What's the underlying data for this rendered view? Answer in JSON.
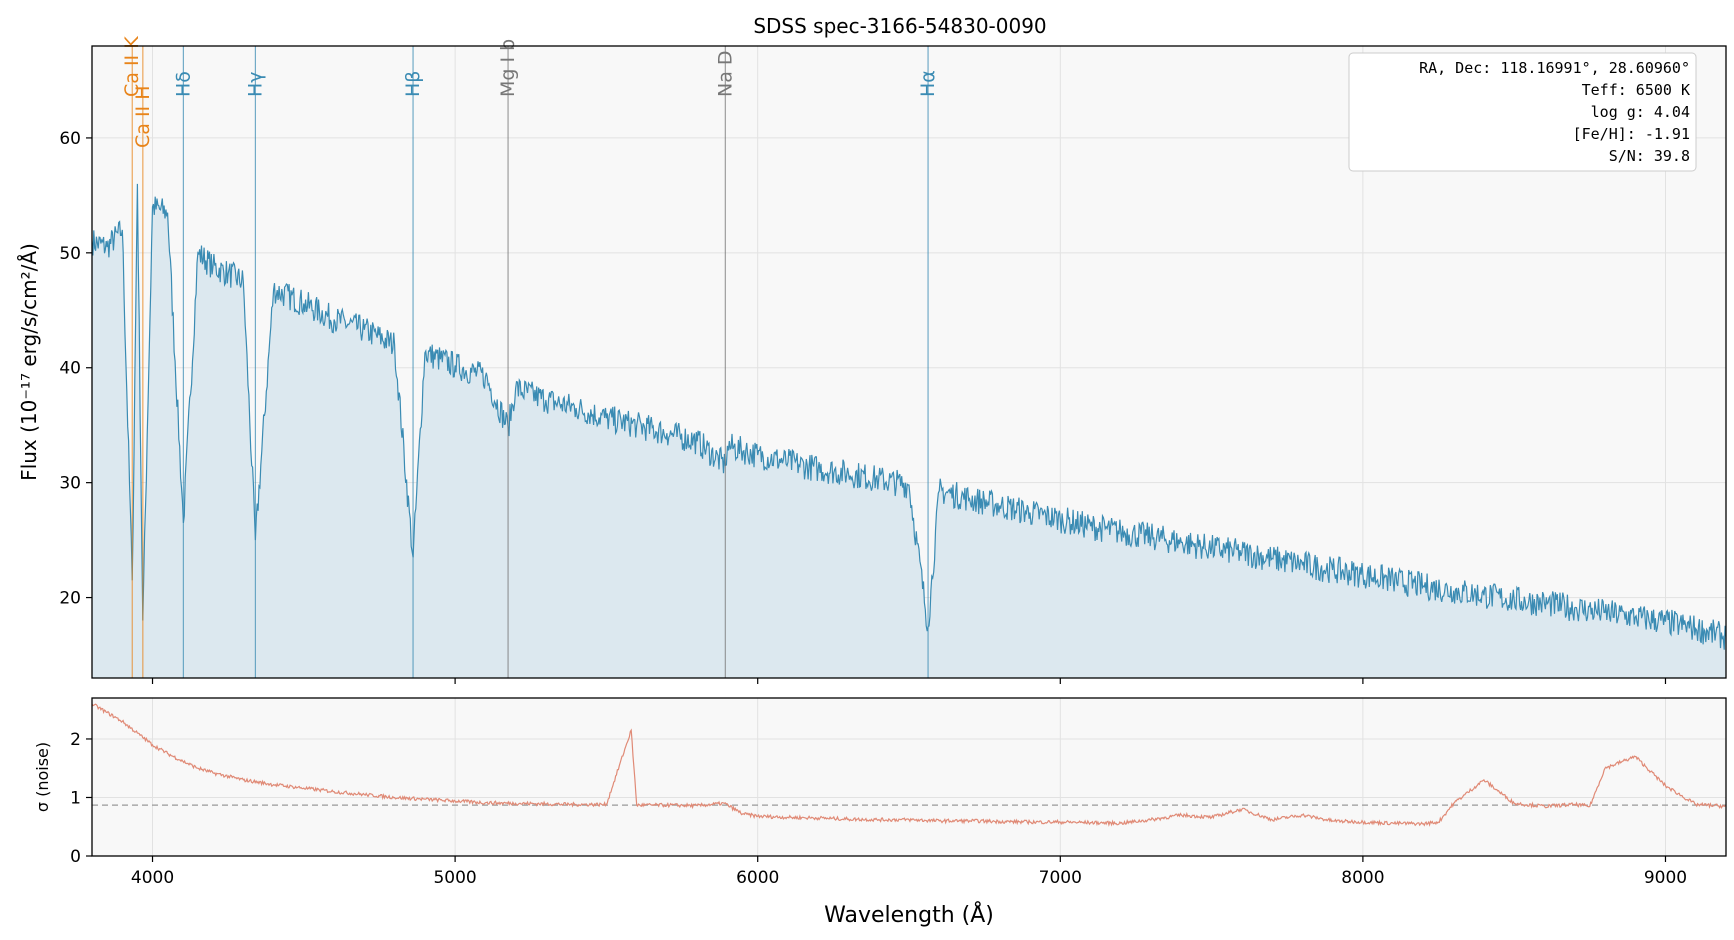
{
  "chart_data": [
    {
      "type": "line",
      "panel": "flux",
      "title": "SDSS spec-3166-54830-0090",
      "ylabel": "Flux (10⁻¹⁷ erg/s/cm²/Å)",
      "xlim": [
        3800,
        9200
      ],
      "ylim": [
        13,
        68
      ],
      "xticks": [
        4000,
        5000,
        6000,
        7000,
        8000,
        9000
      ],
      "yticks": [
        20,
        30,
        40,
        50,
        60
      ],
      "grid": true,
      "series": [
        {
          "color": "#3a8bb3",
          "fill": "#dce8ef",
          "x": [
            3800,
            3850,
            3900,
            3933,
            3950,
            3968,
            4000,
            4050,
            4102,
            4150,
            4200,
            4250,
            4300,
            4340,
            4400,
            4500,
            4600,
            4700,
            4800,
            4861,
            4900,
            5000,
            5100,
            5175,
            5200,
            5300,
            5400,
            5500,
            5600,
            5700,
            5800,
            5893,
            5900,
            6000,
            6100,
            6200,
            6300,
            6400,
            6500,
            6563,
            6600,
            6700,
            6800,
            6900,
            7000,
            7100,
            7200,
            7300,
            7400,
            7500,
            7600,
            7700,
            7800,
            7900,
            8000,
            8100,
            8200,
            8300,
            8400,
            8500,
            8600,
            8700,
            8800,
            8900,
            9000,
            9100,
            9200
          ],
          "y": [
            51,
            50.5,
            52,
            21.5,
            56,
            18,
            54,
            53.5,
            26.5,
            50,
            48.8,
            48.2,
            47.5,
            25,
            46.8,
            45.6,
            44.2,
            43.3,
            42,
            23.5,
            41.3,
            40.2,
            39.2,
            34.8,
            38.2,
            37.2,
            36.5,
            35.6,
            35,
            34.3,
            33.6,
            31.5,
            33.2,
            32.4,
            31.8,
            31.2,
            30.8,
            30.3,
            29.8,
            17.5,
            29.3,
            28.6,
            28,
            27.4,
            26.8,
            26.2,
            25.7,
            25.3,
            24.8,
            24.3,
            23.9,
            23.4,
            22.9,
            22.4,
            22,
            21.5,
            21,
            20.6,
            20.2,
            19.8,
            19.5,
            19.1,
            18.7,
            18.3,
            17.9,
            17.3,
            16.6
          ]
        }
      ],
      "lines": [
        {
          "label": "Ca II K",
          "x": 3933,
          "color": "#e8841a"
        },
        {
          "label": "Ca II H",
          "x": 3968,
          "color": "#e8841a"
        },
        {
          "label": "Hδ",
          "x": 4102,
          "color": "#3a8bb3"
        },
        {
          "label": "Hγ",
          "x": 4340,
          "color": "#3a8bb3"
        },
        {
          "label": "Hβ",
          "x": 4861,
          "color": "#3a8bb3"
        },
        {
          "label": "Mg I b",
          "x": 5175,
          "color": "#777777"
        },
        {
          "label": "Na D",
          "x": 5893,
          "color": "#777777"
        },
        {
          "label": "Hα",
          "x": 6563,
          "color": "#3a8bb3"
        }
      ],
      "info_box": [
        "RA, Dec: 118.16991°, 28.60960°",
        "Teff: 6500 K",
        "log g: 4.04",
        "[Fe/H]: -1.91",
        "S/N: 39.8"
      ]
    },
    {
      "type": "line",
      "panel": "noise",
      "xlabel": "Wavelength (Å)",
      "ylabel": "σ (noise)",
      "xlim": [
        3800,
        9200
      ],
      "ylim": [
        0,
        2.7
      ],
      "xticks": [
        4000,
        5000,
        6000,
        7000,
        8000,
        9000
      ],
      "yticks": [
        0,
        1,
        2
      ],
      "grid": true,
      "reference_line": {
        "y": 0.87,
        "color": "#999999",
        "dash": true
      },
      "series": [
        {
          "color": "#e08a76",
          "x": [
            3800,
            3850,
            3900,
            3950,
            4000,
            4050,
            4100,
            4150,
            4200,
            4300,
            4400,
            4500,
            4600,
            4700,
            4800,
            4900,
            5000,
            5100,
            5200,
            5300,
            5400,
            5500,
            5582,
            5600,
            5700,
            5800,
            5890,
            5950,
            6000,
            6100,
            6200,
            6300,
            6400,
            6500,
            6600,
            6700,
            6800,
            6900,
            7000,
            7100,
            7200,
            7300,
            7400,
            7500,
            7600,
            7700,
            7800,
            7900,
            8000,
            8100,
            8200,
            8250,
            8300,
            8400,
            8500,
            8600,
            8700,
            8750,
            8800,
            8900,
            9000,
            9100,
            9200
          ],
          "y": [
            2.6,
            2.45,
            2.3,
            2.1,
            1.9,
            1.75,
            1.62,
            1.5,
            1.42,
            1.3,
            1.22,
            1.16,
            1.1,
            1.05,
            1.0,
            0.97,
            0.94,
            0.91,
            0.9,
            0.89,
            0.88,
            0.88,
            2.15,
            0.87,
            0.87,
            0.86,
            0.9,
            0.72,
            0.68,
            0.66,
            0.65,
            0.63,
            0.62,
            0.62,
            0.6,
            0.6,
            0.59,
            0.58,
            0.58,
            0.57,
            0.56,
            0.62,
            0.7,
            0.66,
            0.8,
            0.62,
            0.7,
            0.6,
            0.58,
            0.56,
            0.55,
            0.58,
            0.9,
            1.3,
            0.9,
            0.85,
            0.88,
            0.85,
            1.5,
            1.7,
            1.2,
            0.88,
            0.85
          ]
        }
      ]
    }
  ]
}
